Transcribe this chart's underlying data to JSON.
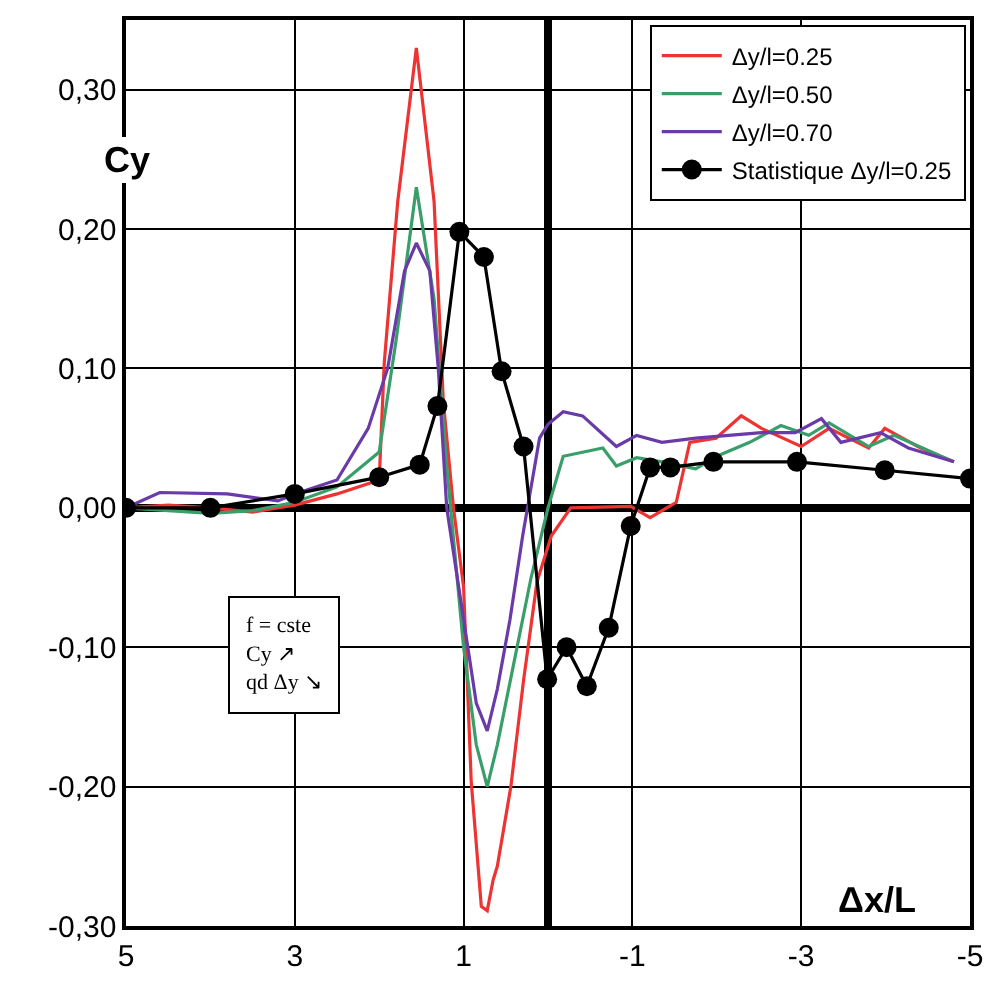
{
  "chart_data": {
    "type": "line",
    "xlabel": "Δx/L",
    "ylabel": "Cy",
    "xlim": [
      5,
      -5
    ],
    "xticks": [
      5,
      3,
      1,
      -1,
      -3,
      -5
    ],
    "ylim": [
      -0.3,
      0.35
    ],
    "yticks": [
      {
        "value": -0.3,
        "label": "-0,30"
      },
      {
        "value": -0.2,
        "label": "-0,20"
      },
      {
        "value": -0.1,
        "label": "-0,10"
      },
      {
        "value": 0,
        "label": "0,00"
      },
      {
        "value": 0.1,
        "label": "0,10"
      },
      {
        "value": 0.2,
        "label": "0,20"
      },
      {
        "value": 0.3,
        "label": "0,30"
      }
    ],
    "grid": true,
    "legend": "top right",
    "line_style": "solid",
    "annotations": [
      "f = cste\nCy ↗\nqd Δy ↘"
    ],
    "series": [
      {
        "name": "Δy/l=0.25",
        "color": "#ee3333",
        "marker": "none",
        "x": [
          5,
          4.5,
          4,
          3.5,
          3,
          2.5,
          2.0,
          1.94,
          1.78,
          1.56,
          1.35,
          1.24,
          1.12,
          1.0,
          0.91,
          0.79,
          0.72,
          0.65,
          0.6,
          0.44,
          0.29,
          0.13,
          -0.04,
          -0.27,
          -0.98,
          -1.21,
          -1.52,
          -1.68,
          -1.99,
          -2.29,
          -2.53,
          -3.0,
          -3.33,
          -3.8,
          -3.99,
          -4.41,
          -4.81
        ],
        "values": [
          0,
          0.002,
          0.0,
          -0.003,
          0.002,
          0.01,
          0.02,
          0.104,
          0.22,
          0.33,
          0.22,
          0.076,
          0.0,
          -0.057,
          -0.196,
          -0.286,
          -0.289,
          -0.267,
          -0.257,
          -0.2,
          -0.124,
          -0.053,
          -0.02,
          0.0,
          0.001,
          -0.007,
          0.004,
          0.047,
          0.05,
          0.066,
          0.057,
          0.044,
          0.057,
          0.043,
          0.057,
          0.043,
          0.033
        ]
      },
      {
        "name": "Δy/l=0.50",
        "color": "#3a9e6a",
        "marker": "none",
        "x": [
          5,
          4.5,
          4,
          3.5,
          3,
          2.5,
          2.0,
          1.8,
          1.56,
          1.35,
          1.2,
          1.0,
          0.85,
          0.72,
          0.6,
          0.4,
          0.2,
          0.0,
          -0.18,
          -0.65,
          -0.81,
          -1.05,
          -1.35,
          -1.75,
          -2.0,
          -2.39,
          -2.76,
          -3.09,
          -3.33,
          -3.8,
          -4.1,
          -4.81
        ],
        "values": [
          0,
          -0.002,
          -0.004,
          -0.002,
          0.004,
          0.015,
          0.04,
          0.12,
          0.23,
          0.15,
          0.03,
          -0.1,
          -0.17,
          -0.2,
          -0.17,
          -0.11,
          -0.05,
          0.0,
          0.037,
          0.043,
          0.03,
          0.036,
          0.033,
          0.028,
          0.037,
          0.047,
          0.059,
          0.052,
          0.061,
          0.044,
          0.052,
          0.033
        ]
      },
      {
        "name": "Δy/l=0.70",
        "color": "#6a3aa8",
        "marker": "none",
        "x": [
          5,
          4.6,
          3.8,
          3.2,
          3,
          2.5,
          2.13,
          1.9,
          1.7,
          1.56,
          1.4,
          1.3,
          1.2,
          1.0,
          0.85,
          0.72,
          0.6,
          0.45,
          0.3,
          0.1,
          0.0,
          -0.18,
          -0.41,
          -0.81,
          -1.05,
          -1.35,
          -1.75,
          -2.53,
          -2.93,
          -3.24,
          -3.47,
          -3.94,
          -4.27,
          -4.81
        ],
        "values": [
          0,
          0.011,
          0.01,
          0.005,
          0.01,
          0.02,
          0.057,
          0.1,
          0.17,
          0.19,
          0.17,
          0.1,
          0.0,
          -0.08,
          -0.14,
          -0.16,
          -0.13,
          -0.08,
          -0.02,
          0.05,
          0.06,
          0.069,
          0.066,
          0.044,
          0.052,
          0.047,
          0.05,
          0.054,
          0.054,
          0.064,
          0.047,
          0.054,
          0.043,
          0.033
        ]
      },
      {
        "name": "Statistique Δy/l=0.25",
        "color": "#000000",
        "marker": "circle",
        "x": [
          5,
          4,
          3,
          2,
          1.52,
          1.31,
          1.05,
          0.76,
          0.55,
          0.29,
          0.01,
          -0.22,
          -0.46,
          -0.72,
          -0.98,
          -1.21,
          -1.45,
          -1.96,
          -2.95,
          -3.99,
          -5
        ],
        "values": [
          0.0,
          0.0,
          0.01,
          0.022,
          0.031,
          0.073,
          0.198,
          0.18,
          0.098,
          0.044,
          -0.123,
          -0.1,
          -0.128,
          -0.086,
          -0.013,
          0.029,
          0.029,
          0.033,
          0.033,
          0.027,
          0.021
        ]
      }
    ]
  }
}
